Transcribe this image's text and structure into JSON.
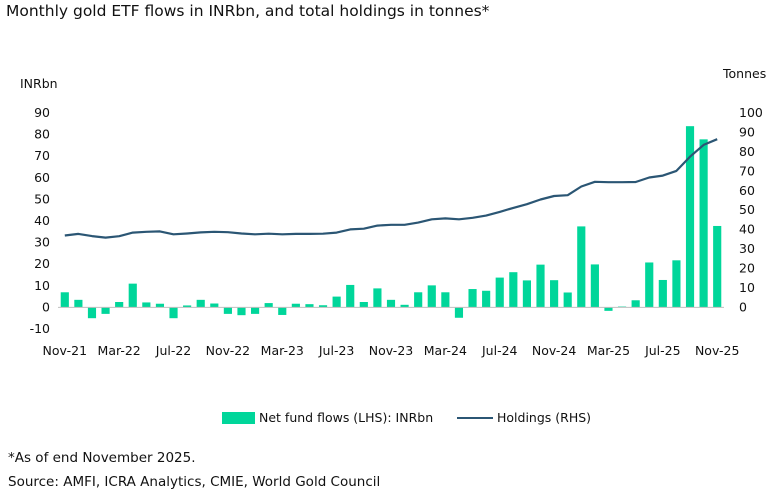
{
  "chart_data": {
    "type": "bar",
    "title": "Monthly gold ETF flows in INRbn, and total holdings in tonnes*",
    "ylabel_left": "INRbn",
    "ylabel_right": "Tonnes",
    "ylim_left": [
      -10,
      90
    ],
    "ylim_right": [
      0,
      100
    ],
    "left_ticks": [
      "90",
      "80",
      "70",
      "60",
      "50",
      "40",
      "30",
      "20",
      "10",
      "0",
      "-10"
    ],
    "right_ticks": [
      "100",
      "90",
      "80",
      "70",
      "60",
      "50",
      "40",
      "30",
      "20",
      "10",
      "0"
    ],
    "x_tick_labels": [
      "Nov-21",
      "Mar-22",
      "Jul-22",
      "Nov-22",
      "Mar-23",
      "Jul-23",
      "Nov-23",
      "Mar-24",
      "Jul-24",
      "Nov-24",
      "Mar-25",
      "Jul-25",
      "Nov-25"
    ],
    "categories": [
      "Nov-21",
      "Dec-21",
      "Jan-22",
      "Feb-22",
      "Mar-22",
      "Apr-22",
      "May-22",
      "Jun-22",
      "Jul-22",
      "Aug-22",
      "Sep-22",
      "Oct-22",
      "Nov-22",
      "Dec-22",
      "Jan-23",
      "Feb-23",
      "Mar-23",
      "Apr-23",
      "May-23",
      "Jun-23",
      "Jul-23",
      "Aug-23",
      "Sep-23",
      "Oct-23",
      "Nov-23",
      "Dec-23",
      "Jan-24",
      "Feb-24",
      "Mar-24",
      "Apr-24",
      "May-24",
      "Jun-24",
      "Jul-24",
      "Aug-24",
      "Sep-24",
      "Oct-24",
      "Nov-24",
      "Dec-24",
      "Jan-25",
      "Feb-25",
      "Mar-25",
      "Apr-25",
      "May-25",
      "Jun-25",
      "Jul-25",
      "Aug-25",
      "Sep-25",
      "Oct-25",
      "Nov-25"
    ],
    "series": [
      {
        "name": "Net fund flows (LHS): INRbn",
        "axis": "left",
        "color": "#00d69a",
        "values": [
          7.0,
          3.5,
          -5.0,
          -3.0,
          2.5,
          11.0,
          2.3,
          1.7,
          -5.0,
          0.9,
          3.5,
          1.8,
          -3.0,
          -3.6,
          -3.0,
          2.0,
          -3.5,
          1.7,
          1.5,
          1.0,
          5.0,
          10.4,
          2.5,
          8.8,
          3.5,
          1.2,
          7.0,
          10.2,
          7.0,
          -4.8,
          8.5,
          7.7,
          13.8,
          16.3,
          12.5,
          19.8,
          12.6,
          6.9,
          37.5,
          19.9,
          -1.6,
          0.4,
          3.3,
          20.8,
          12.7,
          21.8,
          83.9,
          77.8,
          37.7
        ]
      },
      {
        "name": "Holdings (RHS)",
        "axis": "right",
        "color": "#2b5674",
        "values": [
          37.0,
          37.8,
          36.7,
          35.9,
          36.6,
          38.5,
          38.9,
          39.1,
          37.6,
          38.0,
          38.6,
          38.9,
          38.7,
          38.0,
          37.6,
          37.9,
          37.6,
          37.8,
          37.8,
          37.9,
          38.5,
          40.1,
          40.5,
          42.1,
          42.5,
          42.5,
          43.6,
          45.3,
          45.8,
          45.3,
          46.1,
          47.2,
          49.1,
          51.2,
          53.1,
          55.5,
          57.3,
          57.7,
          62.2,
          64.6,
          64.4,
          64.4,
          64.5,
          66.8,
          67.8,
          70.2,
          77.5,
          83.6,
          86.5
        ]
      }
    ],
    "grid": false,
    "legend": "bottom"
  },
  "notes": {
    "footnote": "*As of end November 2025.",
    "source": "Source: AMFI, ICRA Analytics, CMIE, World Gold Council"
  }
}
